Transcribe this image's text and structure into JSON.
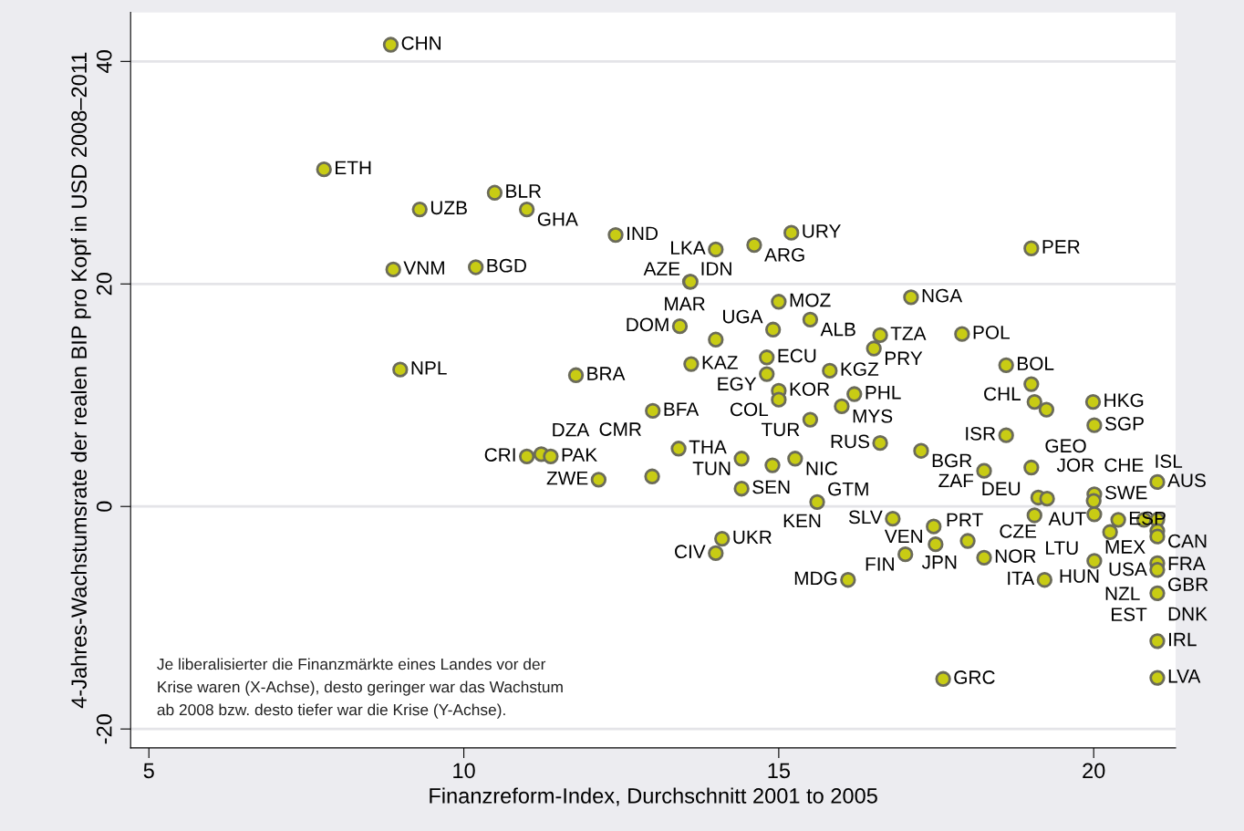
{
  "chart_data": {
    "type": "scatter",
    "xlabel": "Finanzreform-Index, Durchschnitt 2001 to 2005",
    "ylabel": "4-Jahres-Wachstumsrate der realen BIP pro Kopf in USD 2008–2011",
    "xlim": [
      4.71,
      21.3
    ],
    "xticks": [
      5,
      10,
      15,
      20
    ],
    "ylim": [
      -21.7,
      44.4
    ],
    "yticks": [
      -20,
      0,
      20,
      40
    ],
    "grid": "y",
    "marker": "circle",
    "series": [
      {
        "color": "#c8cc14",
        "x": [
          8.84,
          7.78,
          10.49,
          9.3,
          11.0,
          12.41,
          15.2,
          14.61,
          14.0,
          19.01,
          8.88,
          10.19,
          13.59,
          13.6,
          15.0,
          17.1,
          15.5,
          13.43,
          14.91,
          14.0,
          16.61,
          17.91,
          16.51,
          14.81,
          13.61,
          8.99,
          18.61,
          14.81,
          15.81,
          11.78,
          19.01,
          15.0,
          16.2,
          15.0,
          19.06,
          19.99,
          19.25,
          16.0,
          13.0,
          15.5,
          20.01,
          18.61,
          16.61,
          17.26,
          13.41,
          11.0,
          11.23,
          11.38,
          14.41,
          15.26,
          14.9,
          19.01,
          18.26,
          12.14,
          12.99,
          21.01,
          14.41,
          19.12,
          19.26,
          20.01,
          20.0,
          15.61,
          19.06,
          20.01,
          20.39,
          20.8,
          21.01,
          21.01,
          21.01,
          20.26,
          16.81,
          17.46,
          17.49,
          18.0,
          18.26,
          17.01,
          14.1,
          14.0,
          20.01,
          21.01,
          21.01,
          16.1,
          19.22,
          21.01,
          21.01,
          17.61,
          21.01
        ],
        "values": [
          41.5,
          30.3,
          28.2,
          26.7,
          26.7,
          24.4,
          24.6,
          23.5,
          23.1,
          23.2,
          21.3,
          21.5,
          20.2,
          20.2,
          18.4,
          18.8,
          16.8,
          16.2,
          15.9,
          15.0,
          15.4,
          15.5,
          14.2,
          13.4,
          12.8,
          12.3,
          12.7,
          11.9,
          12.2,
          11.8,
          11.0,
          10.4,
          10.1,
          9.6,
          9.4,
          9.4,
          8.7,
          9.0,
          8.6,
          7.8,
          7.3,
          6.4,
          5.7,
          5.0,
          5.2,
          4.5,
          4.7,
          4.5,
          4.3,
          4.3,
          3.7,
          3.5,
          3.2,
          2.4,
          2.7,
          2.2,
          1.6,
          0.8,
          0.7,
          1.1,
          0.5,
          0.4,
          -0.8,
          -0.7,
          -1.2,
          -1.2,
          -1.2,
          -2.2,
          -2.7,
          -2.3,
          -1.1,
          -1.8,
          -3.4,
          -3.1,
          -4.6,
          -4.3,
          -2.9,
          -4.2,
          -4.9,
          -5.1,
          -5.7,
          -6.6,
          -6.6,
          -7.8,
          -12.1,
          -15.5,
          -15.4
        ]
      }
    ],
    "annotations": [
      {
        "text": "CHN",
        "x": 8.84,
        "y": 41.5
      },
      {
        "text": "ETH",
        "x": 7.78,
        "y": 30.3
      },
      {
        "text": "BLR",
        "x": 10.49,
        "y": 28.2
      },
      {
        "text": "UZB",
        "x": 9.3,
        "y": 26.7
      },
      {
        "text": "GHA",
        "x": 11.0,
        "y": 26.7
      },
      {
        "text": "IND",
        "x": 12.41,
        "y": 24.4
      },
      {
        "text": "URY",
        "x": 15.2,
        "y": 24.6
      },
      {
        "text": "ARG",
        "x": 14.61,
        "y": 23.5
      },
      {
        "text": "LKA",
        "x": 14.0,
        "y": 23.1
      },
      {
        "text": "PER",
        "x": 19.01,
        "y": 23.2
      },
      {
        "text": "VNM",
        "x": 8.88,
        "y": 21.3
      },
      {
        "text": "BGD",
        "x": 10.19,
        "y": 21.5
      },
      {
        "text": "IDN",
        "x": 13.59,
        "y": 20.2
      },
      {
        "text": "AZE",
        "x": 13.6,
        "y": 20.2
      },
      {
        "text": "MOZ",
        "x": 15.0,
        "y": 18.4
      },
      {
        "text": "NGA",
        "x": 17.1,
        "y": 18.8
      },
      {
        "text": "ALB",
        "x": 15.5,
        "y": 16.8
      },
      {
        "text": "DOM",
        "x": 13.43,
        "y": 16.2
      },
      {
        "text": "UGA",
        "x": 14.91,
        "y": 15.9
      },
      {
        "text": "MAR",
        "x": 14.0,
        "y": 15.0
      },
      {
        "text": "TZA",
        "x": 16.61,
        "y": 15.4
      },
      {
        "text": "POL",
        "x": 17.91,
        "y": 15.5
      },
      {
        "text": "PRY",
        "x": 16.51,
        "y": 14.2
      },
      {
        "text": "ECU",
        "x": 14.81,
        "y": 13.4
      },
      {
        "text": "KAZ",
        "x": 13.61,
        "y": 12.8
      },
      {
        "text": "NPL",
        "x": 8.99,
        "y": 12.3
      },
      {
        "text": "BOL",
        "x": 18.61,
        "y": 12.7
      },
      {
        "text": "EGY",
        "x": 14.81,
        "y": 11.9
      },
      {
        "text": "KGZ",
        "x": 15.81,
        "y": 12.2
      },
      {
        "text": "BRA",
        "x": 11.78,
        "y": 11.8
      },
      {
        "text": "CHL",
        "x": 19.01,
        "y": 11.0
      },
      {
        "text": "KOR",
        "x": 15.0,
        "y": 10.4
      },
      {
        "text": "PHL",
        "x": 16.2,
        "y": 10.1
      },
      {
        "text": "COL",
        "x": 15.0,
        "y": 9.6
      },
      {
        "text": "GEO",
        "x": 19.06,
        "y": 9.4
      },
      {
        "text": "HKG",
        "x": 19.99,
        "y": 9.4
      },
      {
        "text": "JOR",
        "x": 19.25,
        "y": 8.7
      },
      {
        "text": "MYS",
        "x": 16.0,
        "y": 9.0
      },
      {
        "text": "BFA",
        "x": 13.0,
        "y": 8.6
      },
      {
        "text": "TUR",
        "x": 15.5,
        "y": 7.8
      },
      {
        "text": "SGP",
        "x": 20.01,
        "y": 7.3
      },
      {
        "text": "ISR",
        "x": 18.61,
        "y": 6.4
      },
      {
        "text": "RUS",
        "x": 16.61,
        "y": 5.7
      },
      {
        "text": "BGR",
        "x": 17.26,
        "y": 5.0
      },
      {
        "text": "THA",
        "x": 13.41,
        "y": 5.2
      },
      {
        "text": "CRI",
        "x": 11.0,
        "y": 4.5
      },
      {
        "text": "DZA",
        "x": 11.23,
        "y": 4.7
      },
      {
        "text": "PAK",
        "x": 11.38,
        "y": 4.5
      },
      {
        "text": "TUN",
        "x": 14.41,
        "y": 4.3
      },
      {
        "text": "NIC",
        "x": 15.26,
        "y": 4.3
      },
      {
        "text": "KEN",
        "x": 14.9,
        "y": 3.7
      },
      {
        "text": "DEU",
        "x": 19.01,
        "y": 3.5
      },
      {
        "text": "ZAF",
        "x": 18.26,
        "y": 3.2
      },
      {
        "text": "ZWE",
        "x": 12.14,
        "y": 2.4
      },
      {
        "text": "CMR",
        "x": 12.99,
        "y": 2.7
      },
      {
        "text": "AUS",
        "x": 21.01,
        "y": 2.2
      },
      {
        "text": "SEN",
        "x": 14.41,
        "y": 1.6
      },
      {
        "text": "AUT",
        "x": 19.12,
        "y": 0.8
      },
      {
        "text": "CZE",
        "x": 19.26,
        "y": 0.7
      },
      {
        "text": "SWE",
        "x": 20.01,
        "y": 1.1
      },
      {
        "text": "CHE",
        "x": 20.0,
        "y": 0.5
      },
      {
        "text": "GTM",
        "x": 15.61,
        "y": 0.4
      },
      {
        "text": "LTU",
        "x": 19.06,
        "y": -0.8
      },
      {
        "text": "MEX",
        "x": 20.01,
        "y": -0.7
      },
      {
        "text": "ESP",
        "x": 20.39,
        "y": -1.2
      },
      {
        "text": "ISL",
        "x": 20.8,
        "y": -1.2
      },
      {
        "text": "CAN",
        "x": 21.01,
        "y": -1.2
      },
      {
        "text": "FRA",
        "x": 21.01,
        "y": -2.2
      },
      {
        "text": "USA",
        "x": 21.01,
        "y": -2.7
      },
      {
        "text": "HUN",
        "x": 20.26,
        "y": -2.3
      },
      {
        "text": "SLV",
        "x": 16.81,
        "y": -1.1
      },
      {
        "text": "VEN",
        "x": 17.46,
        "y": -1.8
      },
      {
        "text": "PRT",
        "x": 17.49,
        "y": -3.4
      },
      {
        "text": "JPN",
        "x": 18.0,
        "y": -3.1
      },
      {
        "text": "NOR",
        "x": 18.26,
        "y": -4.6
      },
      {
        "text": "FIN",
        "x": 17.01,
        "y": -4.3
      },
      {
        "text": "UKR",
        "x": 14.1,
        "y": -2.9
      },
      {
        "text": "CIV",
        "x": 14.0,
        "y": -4.2
      },
      {
        "text": "NZL",
        "x": 20.01,
        "y": -4.9
      },
      {
        "text": "GBR",
        "x": 21.01,
        "y": -5.1
      },
      {
        "text": "DNK",
        "x": 21.01,
        "y": -5.7
      },
      {
        "text": "MDG",
        "x": 16.1,
        "y": -6.6
      },
      {
        "text": "ITA",
        "x": 19.22,
        "y": -6.6
      },
      {
        "text": "EST",
        "x": 21.01,
        "y": -7.8
      },
      {
        "text": "IRL",
        "x": 21.01,
        "y": -12.1
      },
      {
        "text": "GRC",
        "x": 17.61,
        "y": -15.5
      },
      {
        "text": "LVA",
        "x": 21.01,
        "y": -15.4
      },
      "Je liberalisierter die Finanzmärkte eines Landes vor der\nKrise waren (X-Achse), desto geringer war das Wachstum\nab 2008 bzw. desto tiefer war die Krise (Y-Achse)."
    ]
  }
}
